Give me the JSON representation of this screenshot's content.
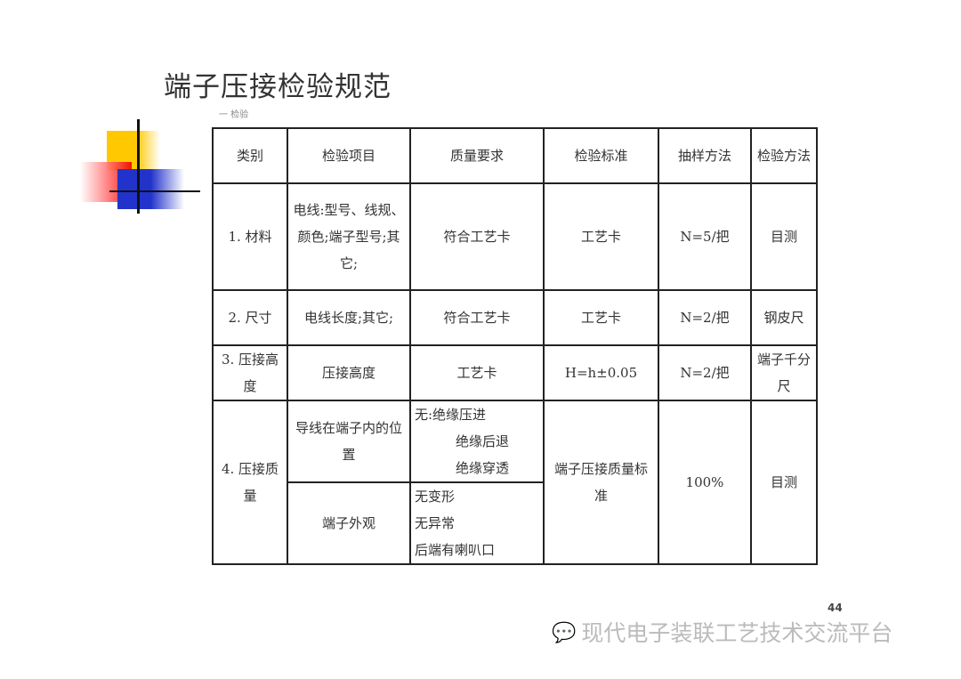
{
  "title": "端子压接检验规范",
  "subtitle_fragment": "一 检验",
  "table": {
    "headers": [
      "类别",
      "检验项目",
      "质量要求",
      "检验标准",
      "抽样方法",
      "检验方法"
    ],
    "rows": [
      {
        "category": "1. 材料",
        "item": "电线:型号、线规、颜色;端子型号;其它;",
        "requirement": "符合工艺卡",
        "standard": "工艺卡",
        "sampling": "N=5/把",
        "method": "目测"
      },
      {
        "category": "2. 尺寸",
        "item": "电线长度;其它;",
        "requirement": "符合工艺卡",
        "standard": "工艺卡",
        "sampling": "N=2/把",
        "method": "钢皮尺"
      },
      {
        "category": "3. 压接高度",
        "item": "压接高度",
        "requirement": "工艺卡",
        "standard": "H=h±0.05",
        "sampling": "N=2/把",
        "method": "端子千分尺"
      }
    ],
    "row4": {
      "category": "4. 压接质量",
      "item1": "导线在端子内的位置",
      "req1": [
        "无:绝缘压进",
        "绝缘后退",
        "绝缘穿透"
      ],
      "item2": "端子外观",
      "req2": [
        "无变形",
        "无异常",
        "后端有喇叭口"
      ],
      "standard": "端子压接质量标准",
      "sampling": "100%",
      "method": "目测"
    }
  },
  "page_number": "44",
  "watermark": "现代电子装联工艺技术交流平台",
  "watermark_icon": "wechat-icon"
}
